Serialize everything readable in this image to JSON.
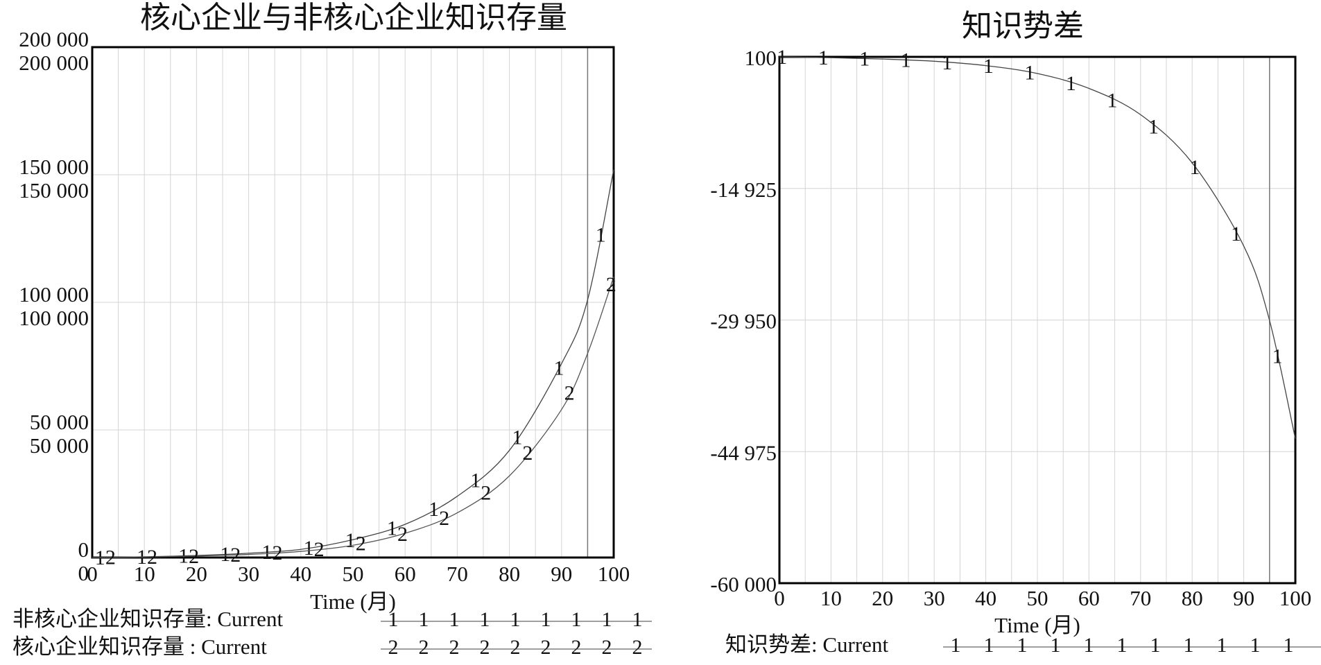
{
  "chart_data": [
    {
      "type": "line",
      "title": "核心企业与非核心企业知识存量",
      "xlabel": "Time (月)",
      "ylabel": "",
      "xlim": [
        0,
        100
      ],
      "ylim": [
        0,
        200000
      ],
      "x_ticks": [
        "0",
        "10",
        "20",
        "30",
        "40",
        "50",
        "60",
        "70",
        "80",
        "90",
        "100"
      ],
      "y_ticks": [
        {
          "value": 200000,
          "labels": [
            "200 000",
            "200 000"
          ]
        },
        {
          "value": 150000,
          "labels": [
            "150 000",
            "150 000"
          ]
        },
        {
          "value": 100000,
          "labels": [
            "100 000",
            "100 000"
          ]
        },
        {
          "value": 50000,
          "labels": [
            "50 000",
            "50 000"
          ]
        },
        {
          "value": 0,
          "labels": [
            "0",
            "0"
          ]
        }
      ],
      "grid": true,
      "cursor_x": 95,
      "x": [
        0,
        10,
        20,
        30,
        40,
        50,
        60,
        70,
        80,
        90,
        95,
        100
      ],
      "series": [
        {
          "name": "非核心企业知识存量",
          "marker": "1",
          "legend_label": "非核心企业知识存量: Current",
          "values": [
            0,
            300,
            800,
            1700,
            3200,
            7000,
            13000,
            24000,
            42000,
            76000,
            101000,
            152000
          ]
        },
        {
          "name": "核心企业知识存量",
          "marker": "2",
          "legend_label": "核心企业知识存量 : Current",
          "values": [
            0,
            200,
            600,
            1200,
            2400,
            4800,
            9500,
            17500,
            32000,
            58000,
            80000,
            110000
          ]
        }
      ],
      "legend_position": "bottom"
    },
    {
      "type": "line",
      "title": "知识势差",
      "xlabel": "Time (月)",
      "ylabel": "",
      "xlim": [
        0,
        100
      ],
      "ylim": [
        -60000,
        100
      ],
      "x_ticks": [
        "0",
        "10",
        "20",
        "30",
        "40",
        "50",
        "60",
        "70",
        "80",
        "90",
        "100"
      ],
      "y_ticks": [
        {
          "value": 100,
          "labels": [
            "100"
          ]
        },
        {
          "value": -14925,
          "labels": [
            "-14 925"
          ]
        },
        {
          "value": -29950,
          "labels": [
            "-29 950"
          ]
        },
        {
          "value": -44975,
          "labels": [
            "-44 975"
          ]
        },
        {
          "value": -60000,
          "labels": [
            "-60 000"
          ]
        }
      ],
      "grid": true,
      "cursor_x": 95,
      "x": [
        0,
        10,
        20,
        30,
        40,
        50,
        60,
        70,
        80,
        90,
        95,
        100
      ],
      "series": [
        {
          "name": "知识势差",
          "marker": "1",
          "legend_label": "知识势差: Current",
          "values": [
            100,
            0,
            -150,
            -400,
            -900,
            -1800,
            -3500,
            -6500,
            -12000,
            -21500,
            -30000,
            -43500
          ]
        }
      ],
      "legend_position": "bottom"
    }
  ]
}
